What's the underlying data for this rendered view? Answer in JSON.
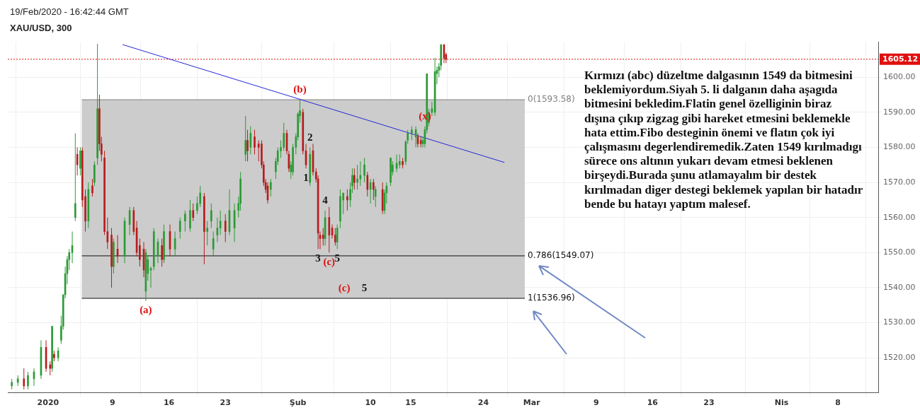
{
  "chart_data": {
    "type": "candlestick",
    "title": "XAU/USD, 300",
    "subtitle": "19/Feb/2020 - 16:42:44 GMT",
    "annotations": [
      "Kırmızı (abc) düzeltme dalgasının 1549 da bitmesini beklemiyordum.Siyah 5. li dalganın daha aşagıda bitmesini bekledim.Flatin genel özelliginin biraz dışına çıkıp zigzag gibi hareket etmesini beklemekle hata ettim.Fibo desteginin önemi ve flatın çok iyi çalışmasını degerlendiremedik.Zaten 1549 kırılmadıgı sürece ons altının yukarı devam etmesi beklenen birşeydi.Burada şunu atlamayalım bir destek kırılmadan diger destegi beklemek yapılan bir hatadır bende bu hatayı yaptım malesef.",
      {
        "text": "(a)",
        "x": "2020-01-13T03:00",
        "y": 1536.2
      },
      {
        "text": "(b)",
        "x": "2020-02-01T06:00",
        "y": 1593.6
      },
      {
        "text": "(x)",
        "x": "2020-02-16T18:00",
        "y": 1586
      },
      {
        "text": "(c)",
        "x": "2020-02-04T21:00",
        "y": 1550
      },
      {
        "text": "(c)",
        "x": "2020-02-06T18:00",
        "y": 1536.96
      },
      {
        "text": "1",
        "x": "2020-02-02T00:00",
        "y": 1574
      },
      {
        "text": "2",
        "x": "2020-02-02T12:00",
        "y": 1580
      },
      {
        "text": "3",
        "x": "2020-02-03T12:00",
        "y": 1551
      },
      {
        "text": "4",
        "x": "2020-02-04T09:00",
        "y": 1562
      },
      {
        "text": "5",
        "x": "2020-02-05T21:00",
        "y": 1551
      },
      {
        "text": "5",
        "x": "2020-02-09T06:00",
        "y": 1536.96
      }
    ],
    "x": [
      "2019-12-27T12:00",
      "2019-12-28T06:00",
      "2019-12-29T00:00",
      "2019-12-29T12:00",
      "2019-12-30T06:00",
      "2019-12-31T03:00",
      "2019-12-31T18:00",
      "2020-01-01T06:00",
      "2020-01-01T12:00",
      "2020-01-01T18:00",
      "2020-01-02T06:00",
      "2020-01-02T15:00",
      "2020-01-02T21:00",
      "2020-01-03T03:00",
      "2020-01-03T09:00",
      "2020-01-03T15:00",
      "2020-01-04T00:00",
      "2020-01-04T09:00",
      "2020-01-04T15:00",
      "2020-01-05T00:00",
      "2020-01-05T06:00",
      "2020-01-05T15:00",
      "2020-01-06T00:00",
      "2020-01-06T12:00",
      "2020-01-06T18:00",
      "2020-01-07T03:00",
      "2020-01-07T09:00",
      "2020-01-07T15:00",
      "2020-01-08T00:00",
      "2020-01-08T09:00",
      "2020-01-08T21:00",
      "2020-01-09T03:00",
      "2020-01-09T15:00",
      "2020-01-10T12:00",
      "2020-01-11T03:00",
      "2020-01-11T15:00",
      "2020-01-12T00:00",
      "2020-01-12T09:00",
      "2020-01-12T21:00",
      "2020-01-13T03:00",
      "2020-01-13T09:00",
      "2020-01-13T18:00",
      "2020-01-14T03:00",
      "2020-01-14T15:00",
      "2020-01-15T03:00",
      "2020-01-15T09:00",
      "2020-01-16T03:00",
      "2020-01-16T18:00",
      "2020-01-17T09:00",
      "2020-01-18T00:00",
      "2020-01-18T15:00",
      "2020-01-19T00:00",
      "2020-01-19T12:00",
      "2020-01-19T21:00",
      "2020-01-20T09:00",
      "2020-01-20T18:00",
      "2020-01-21T06:00",
      "2020-01-21T12:00",
      "2020-01-22T00:00",
      "2020-01-22T09:00",
      "2020-01-23T00:00",
      "2020-01-23T12:00",
      "2020-01-24T03:00",
      "2020-01-24T15:00",
      "2020-01-24T21:00",
      "2020-01-25T12:00",
      "2020-01-25T18:00",
      "2020-01-26T03:00",
      "2020-01-26T15:00",
      "2020-01-27T03:00",
      "2020-01-27T12:00",
      "2020-01-27T18:00",
      "2020-01-28T00:00",
      "2020-01-28T06:00",
      "2020-01-28T15:00",
      "2020-01-29T06:00",
      "2020-01-29T12:00",
      "2020-01-29T21:00",
      "2020-01-30T06:00",
      "2020-01-30T15:00",
      "2020-01-30T21:00",
      "2020-01-31T03:00",
      "2020-01-31T09:00",
      "2020-01-31T18:00",
      "2020-02-01T00:00",
      "2020-02-01T06:00",
      "2020-02-01T15:00",
      "2020-02-02T00:00",
      "2020-02-02T12:00",
      "2020-02-02T21:00",
      "2020-02-03T06:00",
      "2020-02-03T12:00",
      "2020-02-03T18:00",
      "2020-02-04T03:00",
      "2020-02-04T09:00",
      "2020-02-04T21:00",
      "2020-02-05T06:00",
      "2020-02-05T15:00",
      "2020-02-05T21:00",
      "2020-02-06T06:00",
      "2020-02-06T15:00",
      "2020-02-07T03:00",
      "2020-02-07T12:00",
      "2020-02-07T18:00",
      "2020-02-08T00:00",
      "2020-02-08T09:00",
      "2020-02-08T18:00",
      "2020-02-09T06:00",
      "2020-02-09T15:00",
      "2020-02-10T00:00",
      "2020-02-10T09:00",
      "2020-02-10T15:00",
      "2020-02-11T12:00",
      "2020-02-11T18:00",
      "2020-02-12T00:00",
      "2020-02-12T12:00",
      "2020-02-12T18:00",
      "2020-02-13T06:00",
      "2020-02-13T15:00",
      "2020-02-14T00:00",
      "2020-02-14T09:00",
      "2020-02-14T15:00",
      "2020-02-15T03:00",
      "2020-02-15T15:00",
      "2020-02-15T21:00",
      "2020-02-16T06:00",
      "2020-02-16T12:00",
      "2020-02-16T18:00",
      "2020-02-17T00:00",
      "2020-02-17T06:00",
      "2020-02-17T15:00",
      "2020-02-18T00:00",
      "2020-02-18T06:00",
      "2020-02-18T12:00",
      "2020-02-18T18:00",
      "2020-02-19T03:00",
      "2020-02-19T09:00"
    ],
    "ohlc": [
      [
        1512,
        1514,
        1511,
        1513
      ],
      [
        1513,
        1515,
        1512,
        1514
      ],
      [
        1514,
        1517,
        1511,
        1512
      ],
      [
        1512,
        1516,
        1511,
        1515
      ],
      [
        1514,
        1517,
        1512,
        1516
      ],
      [
        1515,
        1525,
        1514,
        1523
      ],
      [
        1523,
        1525,
        1516,
        1517
      ],
      [
        1518,
        1519,
        1515,
        1517
      ],
      [
        1517,
        1529,
        1516,
        1529
      ],
      [
        1521,
        1522,
        1519,
        1520
      ],
      [
        1520,
        1523,
        1519,
        1522
      ],
      [
        1525,
        1532,
        1524,
        1529
      ],
      [
        1529,
        1538,
        1528,
        1538
      ],
      [
        1538,
        1546,
        1537,
        1544
      ],
      [
        1544,
        1549,
        1541,
        1548
      ],
      [
        1548,
        1551,
        1545,
        1550
      ],
      [
        1550,
        1556,
        1547,
        1552
      ],
      [
        1560,
        1584,
        1559,
        1564
      ],
      [
        1578,
        1580,
        1572,
        1575
      ],
      [
        1574,
        1580,
        1572,
        1579
      ],
      [
        1579,
        1580,
        1563,
        1565
      ],
      [
        1566,
        1568,
        1556,
        1559
      ],
      [
        1559,
        1570,
        1557,
        1568
      ],
      [
        1569,
        1571,
        1566,
        1567
      ],
      [
        1570,
        1576,
        1569,
        1575
      ],
      [
        1577,
        1609.5,
        1575,
        1591
      ],
      [
        1591,
        1595,
        1579,
        1581
      ],
      [
        1581,
        1583,
        1576,
        1578
      ],
      [
        1577,
        1579,
        1555,
        1556
      ],
      [
        1556,
        1560,
        1551,
        1553
      ],
      [
        1555,
        1557,
        1540,
        1546
      ],
      [
        1546,
        1554,
        1544,
        1553
      ],
      [
        1551,
        1555,
        1547,
        1549
      ],
      [
        1549,
        1560,
        1547,
        1559
      ],
      [
        1558,
        1563,
        1555,
        1562
      ],
      [
        1562,
        1563,
        1555,
        1556
      ],
      [
        1557,
        1559,
        1549,
        1550
      ],
      [
        1552,
        1554,
        1546,
        1548
      ],
      [
        1551,
        1553,
        1543,
        1545
      ],
      [
        1539,
        1551,
        1536.2,
        1550
      ],
      [
        1544,
        1549,
        1542,
        1548
      ],
      [
        1545,
        1546,
        1540,
        1545.5
      ],
      [
        1546,
        1557,
        1545,
        1556
      ],
      [
        1549,
        1554,
        1547,
        1553
      ],
      [
        1552,
        1554,
        1546,
        1548
      ],
      [
        1548,
        1558,
        1547,
        1556
      ],
      [
        1556,
        1558,
        1549,
        1551
      ],
      [
        1551,
        1556,
        1549,
        1554
      ],
      [
        1556,
        1560,
        1554,
        1559
      ],
      [
        1559,
        1562,
        1556,
        1561
      ],
      [
        1557,
        1565,
        1556,
        1562
      ],
      [
        1562,
        1564,
        1559,
        1560
      ],
      [
        1562,
        1566,
        1561,
        1564
      ],
      [
        1564,
        1569,
        1563,
        1567
      ],
      [
        1566,
        1567,
        1546.7,
        1556
      ],
      [
        1556,
        1559,
        1552,
        1557
      ],
      [
        1559,
        1564,
        1557,
        1562
      ],
      [
        1551,
        1556,
        1549,
        1554
      ],
      [
        1555,
        1560,
        1553,
        1557
      ],
      [
        1557,
        1562,
        1555,
        1559
      ],
      [
        1559,
        1561,
        1553,
        1556
      ],
      [
        1556,
        1568,
        1555,
        1562
      ],
      [
        1557,
        1564,
        1553,
        1562
      ],
      [
        1562,
        1566,
        1560,
        1564
      ],
      [
        1564,
        1573,
        1562,
        1571
      ],
      [
        1578,
        1589,
        1576,
        1582
      ],
      [
        1582,
        1585,
        1576,
        1579
      ],
      [
        1580,
        1586,
        1578,
        1584
      ],
      [
        1583,
        1585,
        1578,
        1580
      ],
      [
        1581,
        1582,
        1576,
        1580
      ],
      [
        1581,
        1582,
        1574,
        1575
      ],
      [
        1575,
        1576,
        1569,
        1570
      ],
      [
        1570,
        1571,
        1567,
        1568
      ],
      [
        1569,
        1570,
        1564,
        1565
      ],
      [
        1568,
        1571,
        1566,
        1570
      ],
      [
        1573,
        1577,
        1571,
        1576
      ],
      [
        1576,
        1580,
        1575,
        1579
      ],
      [
        1579,
        1582,
        1577,
        1580
      ],
      [
        1580,
        1587,
        1579,
        1584
      ],
      [
        1584,
        1585,
        1578,
        1579
      ],
      [
        1578,
        1579,
        1573,
        1574
      ],
      [
        1573,
        1576,
        1571,
        1575
      ],
      [
        1573,
        1581,
        1572,
        1580
      ],
      [
        1580,
        1584,
        1578,
        1583
      ],
      [
        1583,
        1590,
        1582,
        1589.5
      ],
      [
        1589,
        1593.6,
        1587,
        1590.5
      ],
      [
        1590,
        1591,
        1578,
        1579
      ],
      [
        1579,
        1581,
        1574,
        1575
      ],
      [
        1570,
        1580,
        1569,
        1578
      ],
      [
        1579,
        1581,
        1572,
        1573
      ],
      [
        1573,
        1574,
        1570,
        1571
      ],
      [
        1571,
        1572,
        1551,
        1555.5
      ],
      [
        1555,
        1556,
        1551,
        1554
      ],
      [
        1555,
        1557,
        1552,
        1554
      ],
      [
        1554,
        1562,
        1552,
        1560
      ],
      [
        1560,
        1563,
        1550,
        1555
      ],
      [
        1557,
        1558,
        1554,
        1555
      ],
      [
        1555,
        1557,
        1552,
        1553
      ],
      [
        1553,
        1558,
        1551,
        1557
      ],
      [
        1559,
        1568,
        1557,
        1566
      ],
      [
        1565,
        1567,
        1561,
        1567
      ],
      [
        1566,
        1568,
        1562,
        1565
      ],
      [
        1565,
        1570,
        1563,
        1568
      ],
      [
        1569,
        1574,
        1567,
        1572
      ],
      [
        1572,
        1574,
        1568,
        1570
      ],
      [
        1570,
        1575,
        1568,
        1571
      ],
      [
        1571,
        1576,
        1569,
        1572
      ],
      [
        1572,
        1577,
        1570,
        1575
      ],
      [
        1572,
        1573,
        1566,
        1568
      ],
      [
        1568,
        1571,
        1564,
        1570
      ],
      [
        1570,
        1571,
        1565,
        1568
      ],
      [
        1566,
        1569,
        1563,
        1568
      ],
      [
        1568,
        1570,
        1561,
        1562
      ],
      [
        1562,
        1568,
        1561,
        1567
      ],
      [
        1567,
        1570,
        1564,
        1569
      ],
      [
        1570,
        1577,
        1569,
        1577
      ],
      [
        1573,
        1576,
        1572,
        1575
      ],
      [
        1574,
        1578,
        1573,
        1575.5
      ],
      [
        1575,
        1578,
        1574,
        1576
      ],
      [
        1576,
        1577,
        1574,
        1575
      ],
      [
        1576,
        1582,
        1575,
        1581.6
      ],
      [
        1582,
        1585,
        1581,
        1584
      ],
      [
        1584,
        1586,
        1582,
        1585
      ],
      [
        1583,
        1586,
        1580,
        1585
      ],
      [
        1583,
        1584,
        1580,
        1581
      ],
      [
        1582,
        1583,
        1580,
        1581
      ],
      [
        1581,
        1583,
        1580,
        1582
      ],
      [
        1581,
        1586,
        1580,
        1585
      ],
      [
        1585,
        1601,
        1584,
        1601
      ],
      [
        1587,
        1591,
        1586,
        1590
      ],
      [
        1590,
        1593,
        1589,
        1591
      ],
      [
        1590,
        1605.5,
        1589,
        1601.6
      ],
      [
        1601,
        1603,
        1598,
        1602
      ],
      [
        1602,
        1604,
        1600,
        1603
      ],
      [
        1603.4,
        1609.3,
        1602,
        1609.3
      ],
      [
        1609.3,
        1609.3,
        1604,
        1605.4
      ],
      [
        1606.5,
        1607,
        1604,
        1605.12
      ]
    ],
    "colors": [
      "#2b9b35",
      "#2b9b35",
      "#b71c1c",
      "#2b9b35",
      "#2b9b35",
      "#2b9b35",
      "#b71c1c",
      "#b71c1c",
      "#2b9b35",
      "#b71c1c",
      "#2b9b35",
      "#2b9b35",
      "#2b9b35",
      "#2b9b35",
      "#2b9b35",
      "#2b9b35",
      "#2b9b35",
      "#2b9b35",
      "#b71c1c",
      "#2b9b35",
      "#b71c1c",
      "#b71c1c",
      "#2b9b35",
      "#b71c1c",
      "#2b9b35",
      "#2b9b35",
      "#b71c1c",
      "#b71c1c",
      "#b71c1c",
      "#b71c1c",
      "#b71c1c",
      "#2b9b35",
      "#b71c1c",
      "#2b9b35",
      "#2b9b35",
      "#b71c1c",
      "#b71c1c",
      "#b71c1c",
      "#b71c1c",
      "#2b9b35",
      "#2b9b35",
      "#2b9b35",
      "#2b9b35",
      "#2b9b35",
      "#b71c1c",
      "#2b9b35",
      "#b71c1c",
      "#2b9b35",
      "#2b9b35",
      "#2b9b35",
      "#2b9b35",
      "#b71c1c",
      "#2b9b35",
      "#2b9b35",
      "#b71c1c",
      "#2b9b35",
      "#2b9b35",
      "#2b9b35",
      "#2b9b35",
      "#2b9b35",
      "#b71c1c",
      "#2b9b35",
      "#2b9b35",
      "#2b9b35",
      "#2b9b35",
      "#2b9b35",
      "#b71c1c",
      "#2b9b35",
      "#b71c1c",
      "#b71c1c",
      "#b71c1c",
      "#b71c1c",
      "#b71c1c",
      "#b71c1c",
      "#2b9b35",
      "#2b9b35",
      "#2b9b35",
      "#2b9b35",
      "#2b9b35",
      "#b71c1c",
      "#b71c1c",
      "#2b9b35",
      "#2b9b35",
      "#2b9b35",
      "#2b9b35",
      "#2b9b35",
      "#b71c1c",
      "#b71c1c",
      "#2b9b35",
      "#b71c1c",
      "#b71c1c",
      "#b71c1c",
      "#b71c1c",
      "#b71c1c",
      "#2b9b35",
      "#b71c1c",
      "#b71c1c",
      "#b71c1c",
      "#2b9b35",
      "#2b9b35",
      "#2b9b35",
      "#b71c1c",
      "#2b9b35",
      "#2b9b35",
      "#b71c1c",
      "#2b9b35",
      "#2b9b35",
      "#2b9b35",
      "#b71c1c",
      "#2b9b35",
      "#b71c1c",
      "#2b9b35",
      "#b71c1c",
      "#2b9b35",
      "#2b9b35",
      "#2b9b35",
      "#2b9b35",
      "#2b9b35",
      "#2b9b35",
      "#b71c1c",
      "#2b9b35",
      "#2b9b35",
      "#2b9b35",
      "#2b9b35",
      "#b71c1c",
      "#b71c1c",
      "#2b9b35",
      "#2b9b35",
      "#2b9b35",
      "#2b9b35",
      "#2b9b35",
      "#2b9b35",
      "#2b9b35",
      "#2b9b35",
      "#2b9b35",
      "#b71c1c",
      "#b71c1c"
    ],
    "series": [
      {
        "type": "line",
        "x": [
          "2020-01-10T06:00",
          "2020-02-26T15:00"
        ],
        "values": [
          1609.3,
          1575.7
        ],
        "color": "#2626d9"
      }
    ],
    "bands": [
      {
        "axis": "y",
        "from": 1536.96,
        "to": 1593.58,
        "color": "#cccccc"
      }
    ],
    "ref_lines": [
      {
        "axis": "y",
        "value": 1605.12,
        "label": "1605.12",
        "color": "#e01010",
        "line_style": "dotted"
      },
      {
        "axis": "y",
        "value": 1593.58,
        "label": "0(1593.58)",
        "color": "#808080"
      },
      {
        "axis": "y",
        "value": 1549.07,
        "label": "0.786(1549.07)",
        "color": "#111111"
      },
      {
        "axis": "y",
        "value": 1536.96,
        "label": "1(1536.96)",
        "color": "#111111"
      }
    ],
    "xlim": [
      "2019-12-27",
      "2020-04-13"
    ],
    "xticks": [
      {
        "value": "2020-01-01",
        "label": "2020"
      },
      {
        "value": "2020-01-09",
        "label": "9"
      },
      {
        "value": "2020-01-16",
        "label": "16"
      },
      {
        "value": "2020-01-23",
        "label": "23"
      },
      {
        "value": "2020-02-01",
        "label": "Şub"
      },
      {
        "value": "2020-02-10",
        "label": "10"
      },
      {
        "value": "2020-02-15",
        "label": "15"
      },
      {
        "value": "2020-02-24",
        "label": "24"
      },
      {
        "value": "2020-03-01",
        "label": "Mar"
      },
      {
        "value": "2020-03-09",
        "label": "9"
      },
      {
        "value": "2020-03-16",
        "label": "16"
      },
      {
        "value": "2020-03-23",
        "label": "23"
      },
      {
        "value": "2020-04-01",
        "label": "Nis"
      },
      {
        "value": "2020-04-08",
        "label": "8"
      }
    ],
    "ylim": [
      1510,
      1610
    ],
    "yticks": [
      {
        "value": 1520,
        "label": "1520.00"
      },
      {
        "value": 1530,
        "label": "1530.00"
      },
      {
        "value": 1540,
        "label": "1540.00"
      },
      {
        "value": 1550,
        "label": "1550.00"
      },
      {
        "value": 1560,
        "label": "1560.00"
      },
      {
        "value": 1570,
        "label": "1570.00"
      },
      {
        "value": 1580,
        "label": "1580.00"
      },
      {
        "value": 1590,
        "label": "1590.00"
      },
      {
        "value": 1600,
        "label": "1600.00"
      }
    ],
    "grid": true,
    "legend": false,
    "marker": "none"
  }
}
